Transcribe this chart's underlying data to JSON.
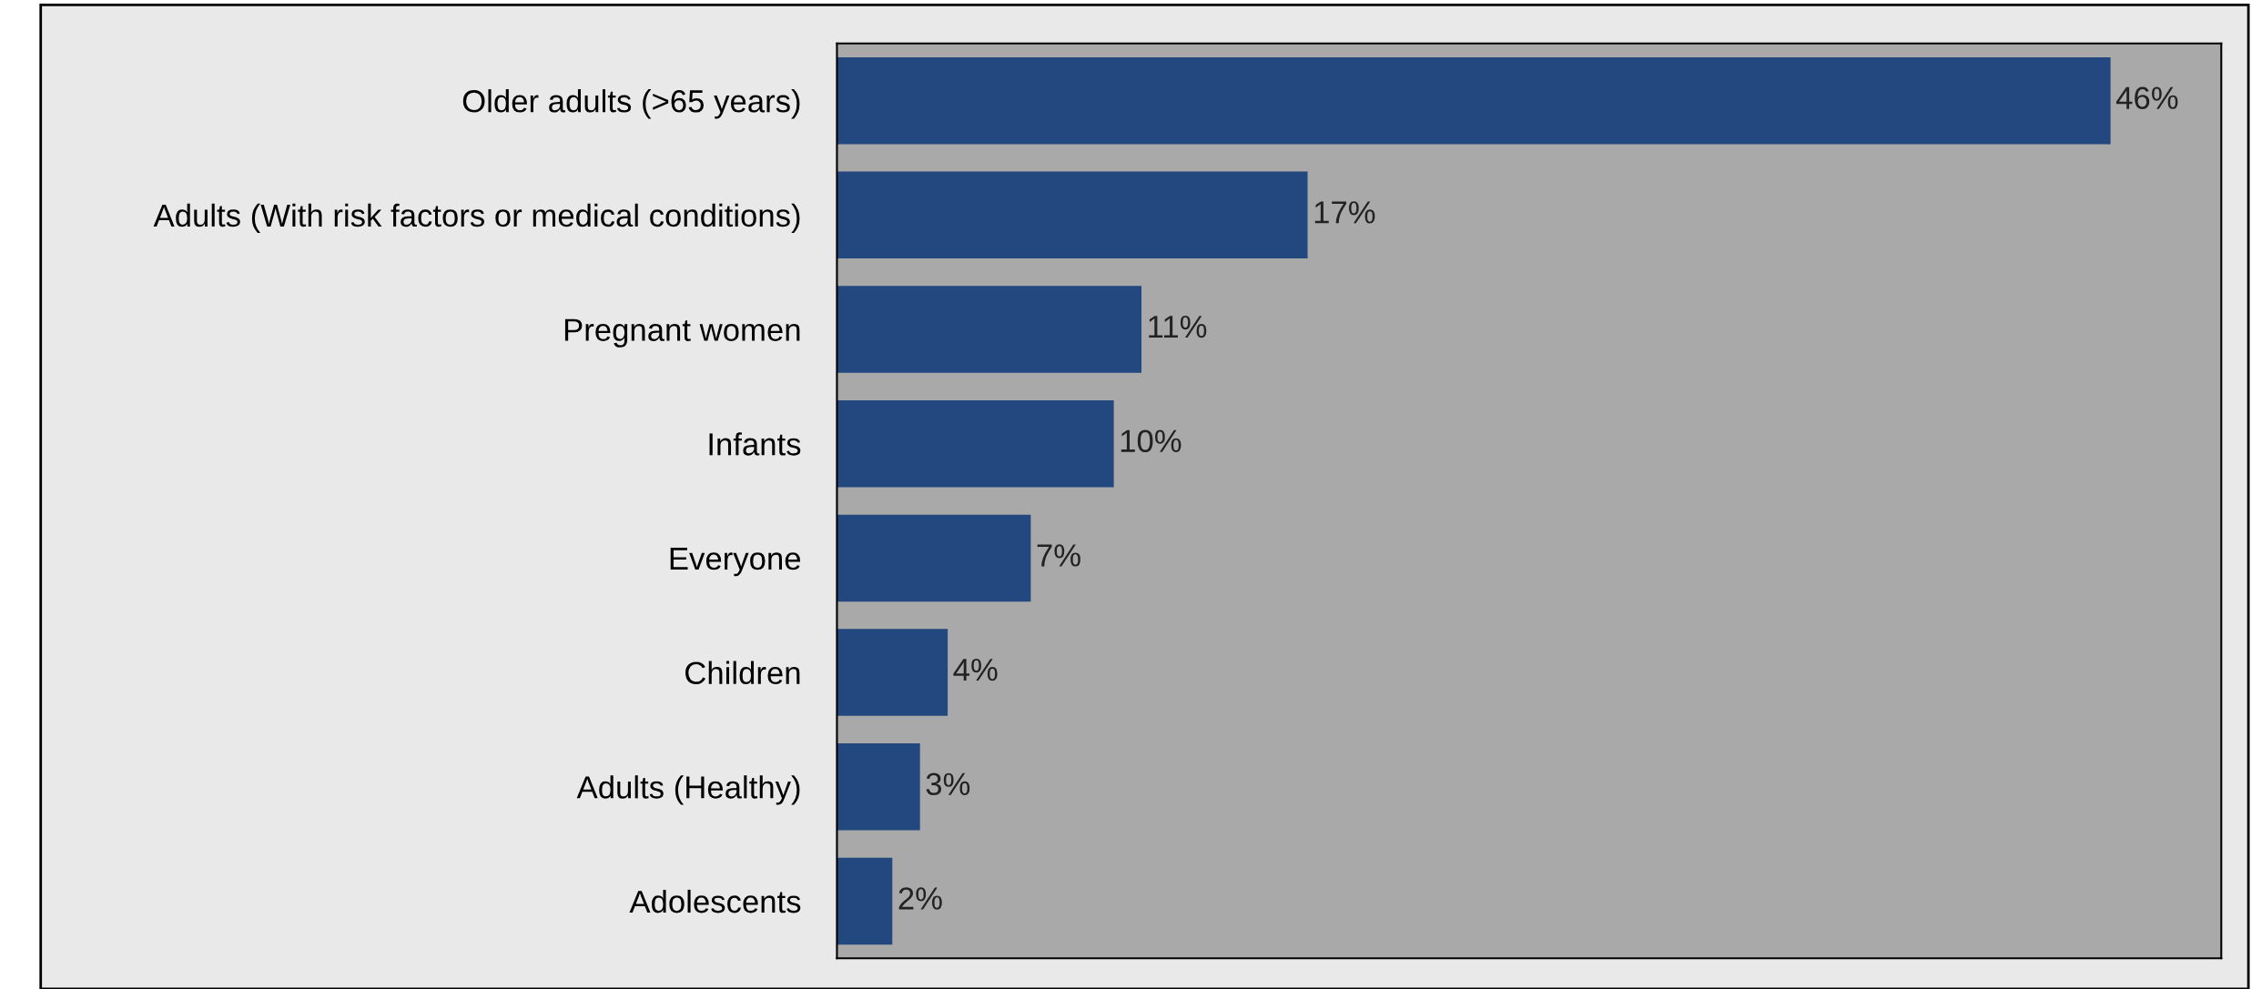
{
  "chart_data": {
    "type": "bar",
    "orientation": "horizontal",
    "categories": [
      "Older adults (>65 years)",
      "Adults (With risk factors or medical conditions)",
      "Pregnant women",
      "Infants",
      "Everyone",
      "Children",
      "Adults (Healthy)",
      "Adolescents"
    ],
    "values": [
      46,
      17,
      11,
      10,
      7,
      4,
      3,
      2
    ],
    "value_labels": [
      "46%",
      "17%",
      "11%",
      "10%",
      "7%",
      "4%",
      "3%",
      "2%"
    ],
    "color": "#23477f",
    "xlim": [
      0,
      50
    ],
    "tick_labels": "y",
    "grid": false,
    "legend": false
  }
}
